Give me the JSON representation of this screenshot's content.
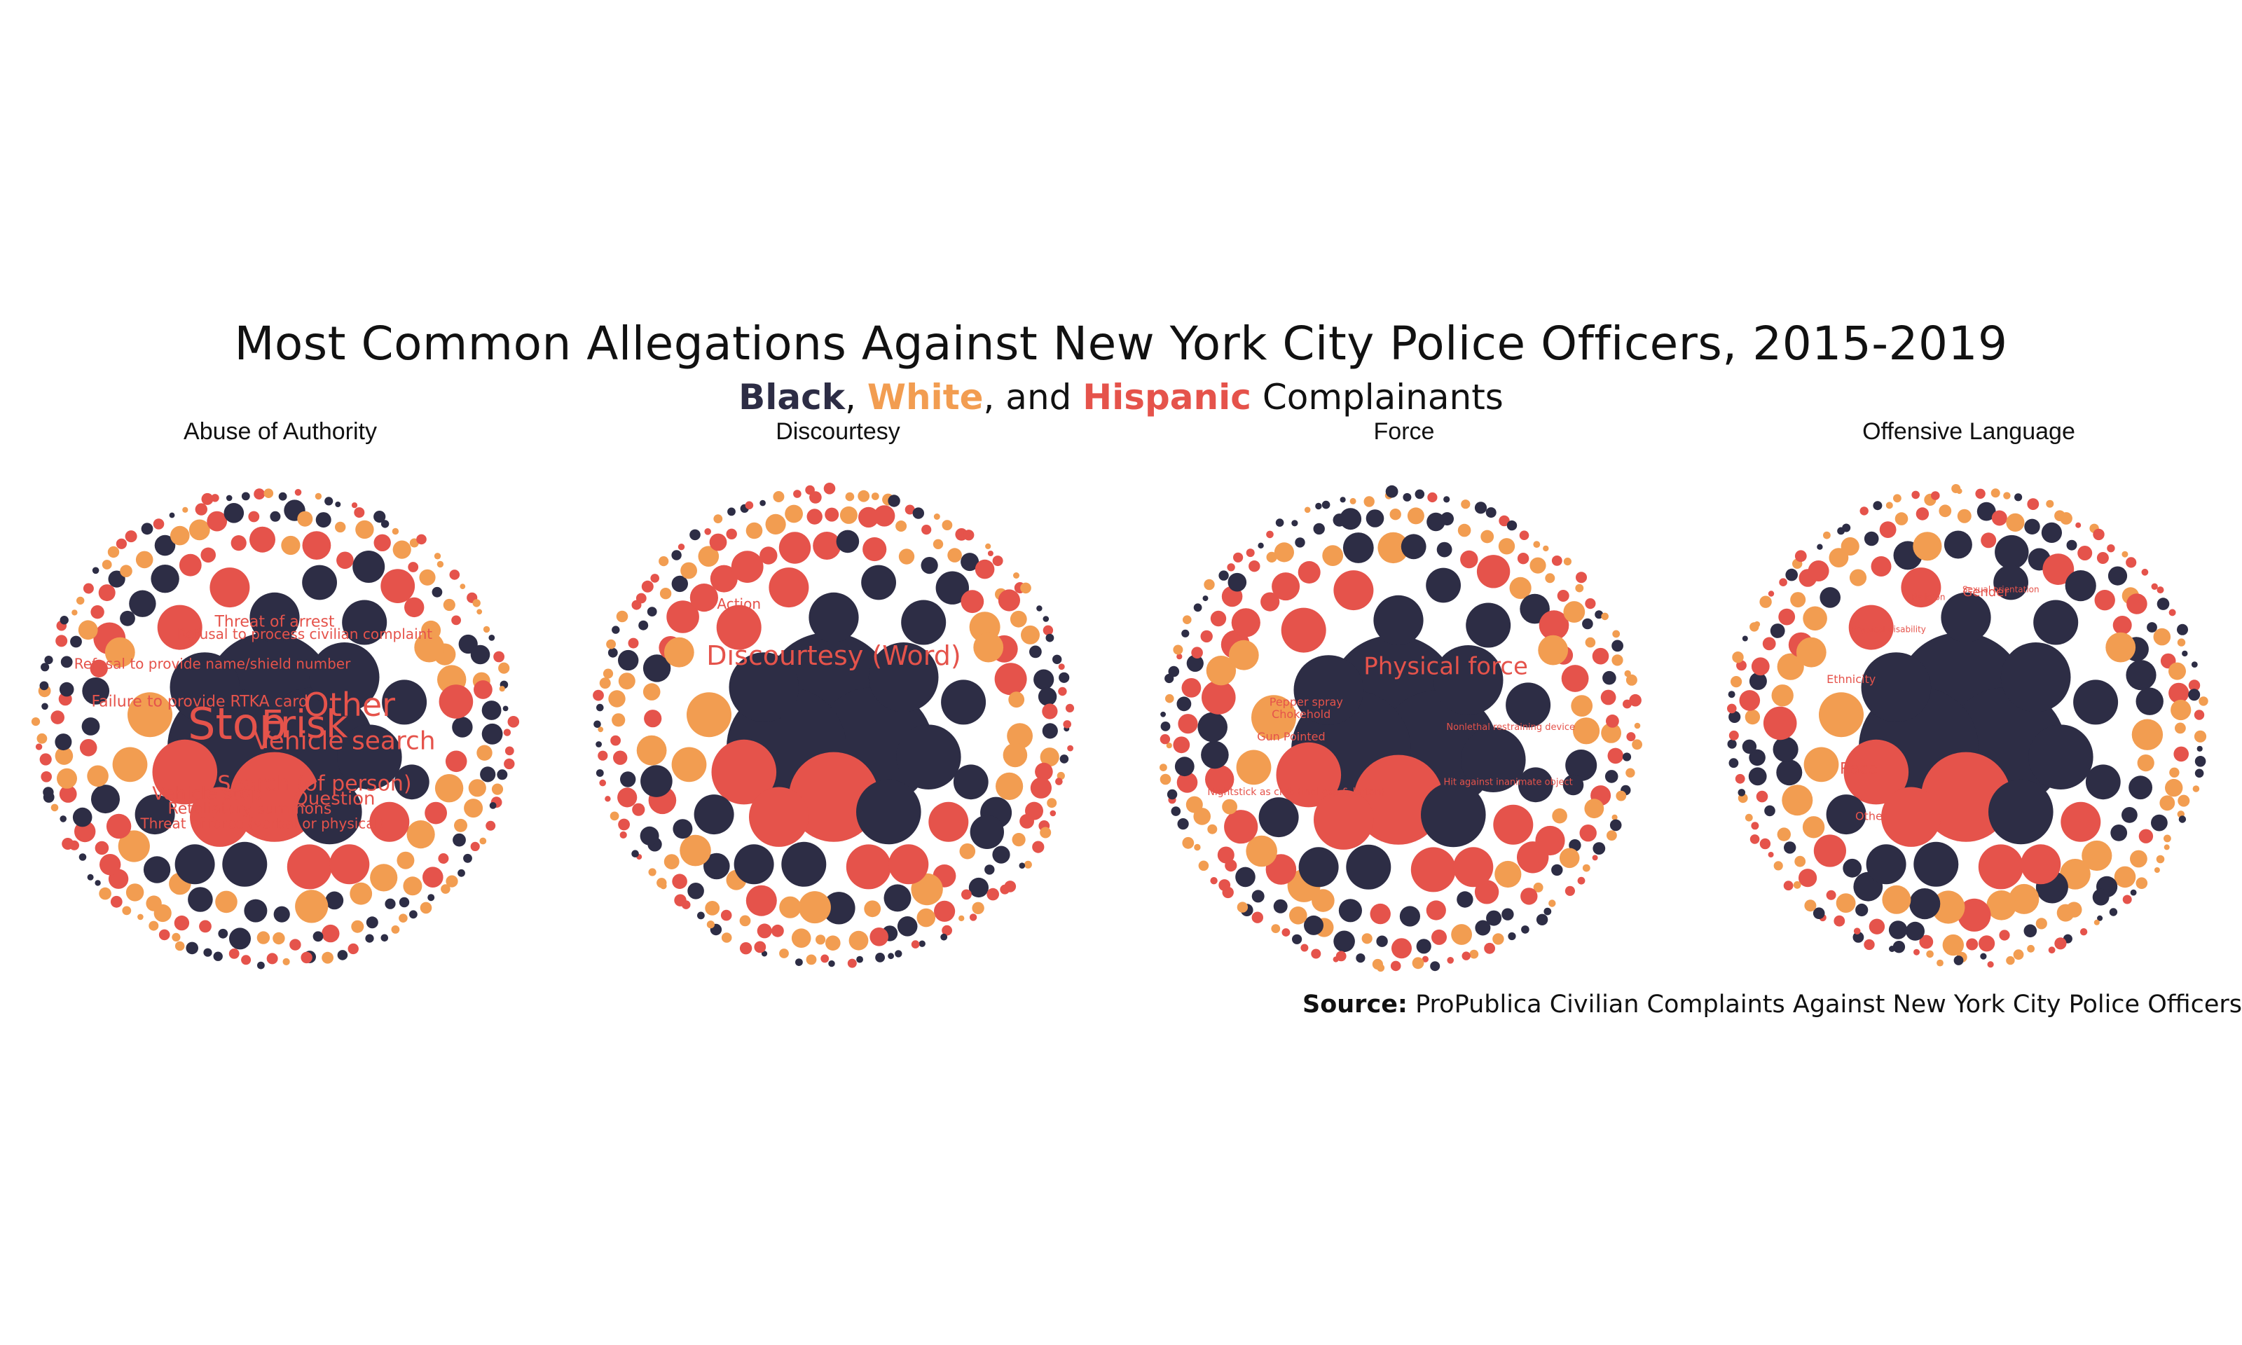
{
  "title": "Most Common Allegations Against New York City Police Officers, 2015-2019",
  "subtitle": {
    "black": "Black",
    "sep1": ", ",
    "white": "White",
    "sep2": ", and ",
    "hispanic": "Hispanic",
    "rest": " Complainants"
  },
  "colors": {
    "Black": "#2d2d45",
    "White": "#f29d51",
    "Hispanic": "#e5534b",
    "label": "#e5534b"
  },
  "source": {
    "label": "Source:",
    "text": " ProPublica Civilian Complaints Against New York City Police Officers"
  },
  "chart_data": [
    {
      "type": "packed-bubble",
      "title": "Abuse of Authority",
      "visible_labels": [
        "Stop",
        "Frisk",
        "Other",
        "Vehicle search",
        "Search (of person)",
        "Question",
        "Refusal to process civilian complaint",
        "Threat of arrest",
        "Failure to provide RTKA card",
        "Refusal to provide name/shield number",
        "Vehicle stop",
        "Retaliatory summons",
        "Threat of force (verbal or physical)"
      ],
      "series_order": [
        "Black",
        "White",
        "Hispanic"
      ]
    },
    {
      "type": "packed-bubble",
      "title": "Discourtesy",
      "visible_labels": [
        "Discourtesy (Word)",
        "Action"
      ],
      "series_order": [
        "Black",
        "White",
        "Hispanic"
      ]
    },
    {
      "type": "packed-bubble",
      "title": "Force",
      "visible_labels": [
        "Physical force",
        "Pepper spray",
        "Chokehold",
        "Gun Pointed",
        "Nightstick as club (incl asp & baton)",
        "Hit against inanimate object",
        "Nonlethal restraining device"
      ],
      "series_order": [
        "Black",
        "White",
        "Hispanic"
      ]
    },
    {
      "type": "packed-bubble",
      "title": "Offensive Language",
      "visible_labels": [
        "Race",
        "Ethnicity",
        "Other",
        "Gender",
        "Religion",
        "Sexual orientation",
        "Physical disability"
      ],
      "series_order": [
        "Black",
        "White",
        "Hispanic"
      ]
    }
  ]
}
